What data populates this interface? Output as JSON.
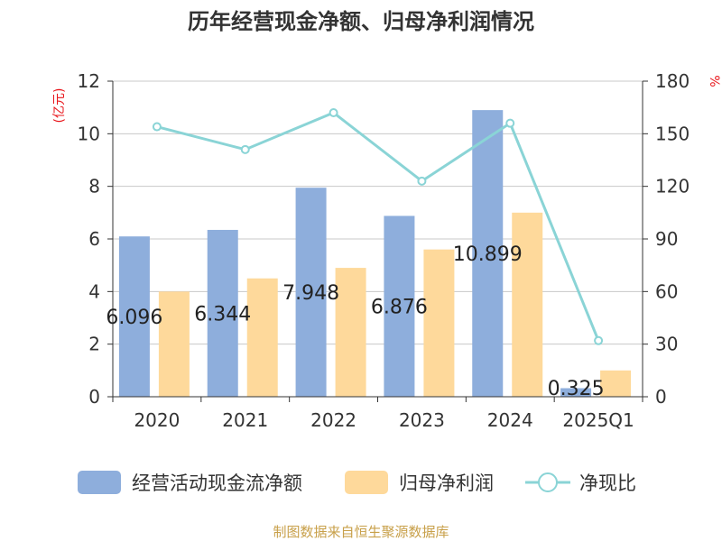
{
  "chart_data": {
    "type": "bar",
    "title": "历年经营现金净额、归母净利润情况",
    "left_unit": "(亿元)",
    "right_unit": "%",
    "categories": [
      "2020",
      "2021",
      "2022",
      "2023",
      "2024",
      "2025Q1"
    ],
    "series": [
      {
        "name": "经营活动现金流净额",
        "type": "bar",
        "axis": "left",
        "color": "#8eaedc",
        "values": [
          6.096,
          6.344,
          7.948,
          6.876,
          10.899,
          0.325
        ],
        "labels": [
          "6.096",
          "6.344",
          "7.948",
          "6.876",
          "10.899",
          "0.325"
        ]
      },
      {
        "name": "归母净利润",
        "type": "bar",
        "axis": "left",
        "color": "#fed99b",
        "values": [
          4.0,
          4.5,
          4.9,
          5.6,
          7.0,
          1.0
        ]
      },
      {
        "name": "净现比",
        "type": "line",
        "axis": "right",
        "color": "#8ad4d6",
        "values": [
          154,
          141,
          162,
          123,
          156,
          32
        ]
      }
    ],
    "ylim_left": [
      0,
      12
    ],
    "yticks_left": [
      0,
      2,
      4,
      6,
      8,
      10,
      12
    ],
    "ylim_right": [
      0,
      180
    ],
    "yticks_right": [
      0,
      30,
      60,
      90,
      120,
      150,
      180
    ],
    "grid": true,
    "legend_position": "bottom"
  },
  "source": "制图数据来自恒生聚源数据库"
}
